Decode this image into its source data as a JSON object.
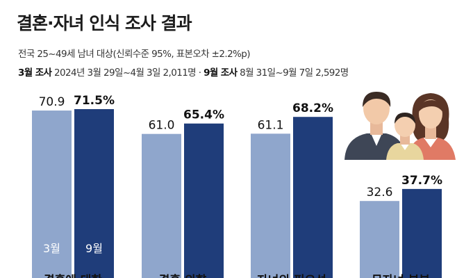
{
  "header": {
    "title": "결혼·자녀 인식 조사 결과",
    "subtitle": "전국 25~49세 남녀 대상(신뢰수준 95%, 표본오차 ±2.2%p)",
    "survey1_label": "3월 조사",
    "survey1_desc": " 2024년 3월 29일~4월 3일 2,011명 · ",
    "survey2_label": "9월 조사",
    "survey2_desc": " 8월 31일~9월 7일 2,592명"
  },
  "colors": {
    "march": "#8fa6cc",
    "september": "#1f3d7a",
    "label": "#111111",
    "bar_inner_text": "#ffffff"
  },
  "chart_data": {
    "type": "bar",
    "categories": [
      "결혼에 대한",
      "결혼 의향",
      "자녀의 필요성",
      "무자녀 부부"
    ],
    "series": [
      {
        "name": "3월",
        "values": [
          70.9,
          61.0,
          61.1,
          32.6
        ],
        "labels": [
          "70.9",
          "61.0",
          "61.1",
          "32.6"
        ]
      },
      {
        "name": "9월",
        "values": [
          71.5,
          65.4,
          68.2,
          37.7
        ],
        "labels": [
          "71.5%",
          "65.4%",
          "68.2%",
          "37.7%"
        ]
      }
    ],
    "ylim": [
      0,
      100
    ],
    "title": "결혼·자녀 인식 조사 결과",
    "xlabel": "",
    "ylabel": ""
  },
  "illustration": {
    "icon": "family-icon"
  }
}
